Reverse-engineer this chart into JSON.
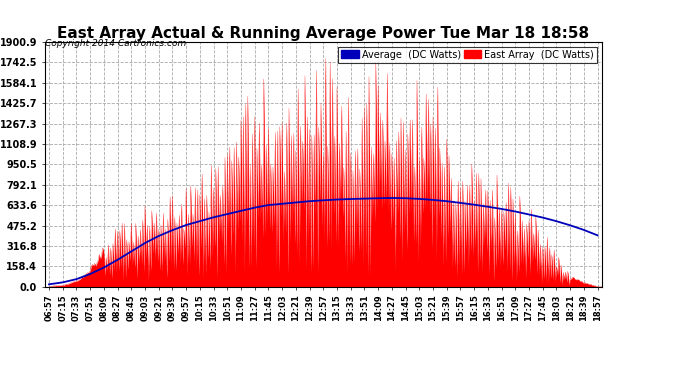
{
  "title": "East Array Actual & Running Average Power Tue Mar 18 18:58",
  "copyright": "Copyright 2014 Cartronics.com",
  "legend_avg": "Average  (DC Watts)",
  "legend_east": "East Array  (DC Watts)",
  "yticks": [
    0.0,
    158.4,
    316.8,
    475.2,
    633.6,
    792.1,
    950.5,
    1108.9,
    1267.3,
    1425.7,
    1584.1,
    1742.5,
    1900.9
  ],
  "ymax": 1900.9,
  "ymin": 0.0,
  "bar_color": "#FF0000",
  "avg_color": "#0000BB",
  "bg_color": "#FFFFFF",
  "plot_bg": "#FFFFFF",
  "grid_color": "#AAAAAA",
  "title_fontsize": 11,
  "xtick_labels": [
    "06:57",
    "07:15",
    "07:33",
    "07:51",
    "08:09",
    "08:27",
    "08:45",
    "09:03",
    "09:21",
    "09:39",
    "09:57",
    "10:15",
    "10:33",
    "10:51",
    "11:09",
    "11:27",
    "11:45",
    "12:03",
    "12:21",
    "12:39",
    "12:57",
    "13:15",
    "13:33",
    "13:51",
    "14:09",
    "14:27",
    "14:45",
    "15:03",
    "15:21",
    "15:39",
    "15:57",
    "16:15",
    "16:33",
    "16:51",
    "17:09",
    "17:27",
    "17:45",
    "18:03",
    "18:21",
    "18:39",
    "18:57"
  ],
  "avg_values": [
    20,
    35,
    60,
    100,
    150,
    210,
    275,
    340,
    395,
    440,
    480,
    510,
    540,
    565,
    590,
    615,
    635,
    645,
    655,
    665,
    672,
    678,
    682,
    685,
    688,
    690,
    688,
    683,
    675,
    665,
    652,
    638,
    622,
    605,
    585,
    562,
    538,
    510,
    478,
    442,
    400
  ],
  "east_envelope": [
    5,
    15,
    50,
    150,
    320,
    480,
    560,
    620,
    670,
    720,
    760,
    820,
    950,
    1150,
    1380,
    1550,
    1600,
    1350,
    1550,
    1650,
    1700,
    1680,
    1350,
    1600,
    1700,
    1700,
    1450,
    1600,
    1700,
    1150,
    900,
    950,
    820,
    860,
    720,
    620,
    430,
    260,
    90,
    40,
    3
  ],
  "east_peak_hours": [
    4,
    37
  ],
  "spike_seed": 123
}
